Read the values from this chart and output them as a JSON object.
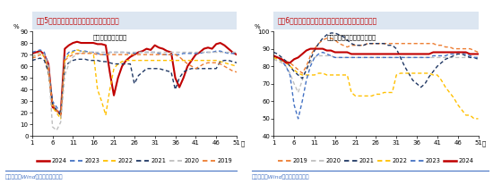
{
  "title_left": "图表5：近半月汽车半钢胎开工率进一步回升",
  "title_right": "图表6：近半月江浙地区涤纶长丝开工率均值延续微升",
  "source_left": "资料来源：Wind，国盛证券研究所",
  "source_right": "资料来源：Wind，国盛证券研究所",
  "left": {
    "annotation": "开工率：汽车半钢胎",
    "ylabel": "%",
    "ylim": [
      0,
      90
    ],
    "yticks": [
      0,
      10,
      20,
      30,
      40,
      50,
      60,
      70,
      80,
      90
    ],
    "xlabel": "周",
    "xticks": [
      1,
      6,
      11,
      16,
      21,
      26,
      31,
      36,
      41,
      46,
      51
    ],
    "series": {
      "2024": {
        "color": "#c00000",
        "linestyle": "solid",
        "linewidth": 1.5,
        "data": [
          71,
          72,
          73,
          70,
          62,
          25,
          22,
          19,
          75,
          78,
          80,
          81,
          80,
          80,
          80,
          80,
          79,
          79,
          78,
          55,
          35,
          50,
          60,
          65,
          68,
          70,
          72,
          73,
          75,
          74,
          78,
          76,
          75,
          73,
          72,
          50,
          42,
          50,
          60,
          65,
          70,
          72,
          75,
          76,
          75,
          79,
          80,
          78,
          75,
          72,
          70
        ]
      },
      "2023": {
        "color": "#4472c4",
        "linestyle": "dashed",
        "linewidth": 1.0,
        "data": [
          72,
          73,
          74,
          72,
          60,
          30,
          25,
          20,
          68,
          72,
          73,
          74,
          73,
          73,
          72,
          72,
          71,
          70,
          70,
          72,
          72,
          72,
          72,
          72,
          71,
          71,
          72,
          72,
          72,
          72,
          72,
          71,
          70,
          70,
          70,
          70,
          70,
          71,
          71,
          71,
          71,
          71,
          72,
          72,
          72,
          73,
          73,
          72,
          71,
          71,
          71
        ]
      },
      "2022": {
        "color": "#ffc000",
        "linestyle": "dashed",
        "linewidth": 1.0,
        "data": [
          68,
          70,
          72,
          68,
          55,
          25,
          20,
          15,
          65,
          70,
          72,
          74,
          73,
          72,
          72,
          71,
          40,
          30,
          18,
          40,
          58,
          62,
          64,
          65,
          65,
          65,
          65,
          65,
          65,
          65,
          65,
          65,
          65,
          65,
          65,
          65,
          65,
          65,
          65,
          65,
          65,
          65,
          65,
          65,
          65,
          65,
          64,
          63,
          62,
          61,
          60
        ]
      },
      "2021": {
        "color": "#203864",
        "linestyle": "dashed",
        "linewidth": 1.0,
        "data": [
          65,
          66,
          67,
          65,
          55,
          28,
          22,
          18,
          60,
          63,
          65,
          66,
          66,
          66,
          65,
          65,
          65,
          64,
          64,
          63,
          62,
          62,
          62,
          62,
          62,
          45,
          52,
          55,
          58,
          58,
          58,
          58,
          57,
          56,
          55,
          40,
          50,
          55,
          57,
          58,
          58,
          58,
          58,
          58,
          58,
          58,
          64,
          65,
          65,
          64,
          63
        ]
      },
      "2020": {
        "color": "#bfbfbf",
        "linestyle": "dashed",
        "linewidth": 1.0,
        "data": [
          68,
          70,
          72,
          70,
          60,
          8,
          5,
          12,
          52,
          62,
          68,
          70,
          72,
          72,
          72,
          72,
          72,
          72,
          72,
          72,
          72,
          72,
          72,
          72,
          72,
          72,
          72,
          72,
          72,
          72,
          72,
          72,
          72,
          72,
          72,
          72,
          72,
          72,
          72,
          72,
          72,
          72,
          72,
          72,
          72,
          72,
          72,
          72,
          72,
          72,
          72
        ]
      },
      "2019": {
        "color": "#ed7d31",
        "linestyle": "dashed",
        "linewidth": 1.0,
        "data": [
          67,
          68,
          70,
          68,
          58,
          28,
          22,
          18,
          65,
          68,
          70,
          71,
          71,
          71,
          71,
          71,
          70,
          70,
          70,
          70,
          70,
          70,
          70,
          70,
          70,
          70,
          70,
          70,
          70,
          70,
          70,
          70,
          70,
          70,
          70,
          70,
          68,
          65,
          62,
          60,
          58,
          60,
          62,
          63,
          63,
          63,
          62,
          60,
          58,
          56,
          55
        ]
      }
    },
    "legend_order": [
      "2024",
      "2023",
      "2022",
      "2021",
      "2020",
      "2019"
    ]
  },
  "right": {
    "annotation": "开工率：涤纶长丝；江浙地区",
    "ylabel": "%",
    "ylim": [
      40,
      100
    ],
    "yticks": [
      40,
      50,
      60,
      70,
      80,
      90,
      100
    ],
    "xlabel": "周",
    "xticks": [
      1,
      6,
      11,
      16,
      21,
      26,
      31,
      36,
      41,
      46,
      51
    ],
    "series": {
      "2019": {
        "color": "#ed7d31",
        "linestyle": "dashed",
        "linewidth": 1.0,
        "data": [
          86,
          85,
          84,
          83,
          82,
          80,
          78,
          76,
          80,
          86,
          90,
          93,
          95,
          96,
          96,
          95,
          93,
          92,
          91,
          92,
          92,
          92,
          92,
          93,
          93,
          93,
          93,
          93,
          93,
          93,
          93,
          93,
          93,
          93,
          93,
          93,
          93,
          93,
          93,
          93,
          92,
          92,
          91,
          91,
          90,
          90,
          90,
          90,
          90,
          89,
          88
        ]
      },
      "2020": {
        "color": "#bfbfbf",
        "linestyle": "dashed",
        "linewidth": 1.0,
        "data": [
          84,
          83,
          82,
          80,
          76,
          70,
          65,
          72,
          78,
          82,
          85,
          86,
          86,
          86,
          86,
          85,
          85,
          85,
          85,
          85,
          85,
          85,
          85,
          85,
          85,
          85,
          85,
          85,
          85,
          85,
          85,
          85,
          85,
          85,
          85,
          85,
          85,
          85,
          85,
          85,
          85,
          85,
          85,
          85,
          85,
          85,
          85,
          85,
          85,
          85,
          85
        ]
      },
      "2021": {
        "color": "#203864",
        "linestyle": "dashed",
        "linewidth": 1.0,
        "data": [
          88,
          87,
          85,
          83,
          80,
          77,
          75,
          73,
          78,
          84,
          89,
          93,
          96,
          98,
          99,
          99,
          98,
          97,
          95,
          93,
          92,
          92,
          92,
          93,
          93,
          93,
          93,
          93,
          92,
          92,
          90,
          85,
          80,
          76,
          72,
          70,
          68,
          70,
          74,
          77,
          80,
          82,
          84,
          85,
          86,
          87,
          87,
          86,
          85,
          85,
          84
        ]
      },
      "2022": {
        "color": "#ffc000",
        "linestyle": "dashed",
        "linewidth": 1.0,
        "data": [
          85,
          84,
          83,
          82,
          80,
          78,
          76,
          75,
          75,
          75,
          75,
          76,
          76,
          75,
          75,
          75,
          75,
          75,
          75,
          65,
          63,
          63,
          63,
          63,
          63,
          64,
          64,
          65,
          65,
          65,
          75,
          76,
          76,
          76,
          76,
          76,
          76,
          76,
          76,
          75,
          75,
          72,
          68,
          65,
          62,
          58,
          55,
          52,
          52,
          50,
          50
        ]
      },
      "2023": {
        "color": "#4472c4",
        "linestyle": "dashed",
        "linewidth": 1.0,
        "data": [
          86,
          85,
          83,
          80,
          75,
          58,
          50,
          60,
          72,
          80,
          85,
          87,
          88,
          87,
          86,
          85,
          85,
          85,
          85,
          85,
          85,
          85,
          85,
          85,
          85,
          85,
          85,
          85,
          85,
          85,
          85,
          85,
          85,
          85,
          85,
          85,
          85,
          85,
          85,
          86,
          86,
          86,
          86,
          87,
          87,
          88,
          88,
          87,
          86,
          85,
          85
        ]
      },
      "2024": {
        "color": "#c00000",
        "linestyle": "solid",
        "linewidth": 1.5,
        "data": [
          86,
          85,
          84,
          82,
          82,
          84,
          85,
          87,
          89,
          90,
          90,
          90,
          90,
          89,
          89,
          88,
          88,
          88,
          88,
          87,
          87,
          87,
          87,
          87,
          87,
          87,
          87,
          87,
          87,
          87,
          87,
          87,
          87,
          87,
          87,
          87,
          87,
          87,
          87,
          88,
          88,
          88,
          88,
          88,
          88,
          88,
          88,
          88,
          87,
          87,
          87
        ]
      }
    },
    "legend_order": [
      "2019",
      "2020",
      "2021",
      "2022",
      "2023",
      "2024"
    ]
  },
  "title_bg": "#dce6f1",
  "title_color": "#c00000",
  "title_fontsize": 5.5,
  "source_color": "#4472c4",
  "divider_color": "#4472c4",
  "bg_color": "#ffffff"
}
